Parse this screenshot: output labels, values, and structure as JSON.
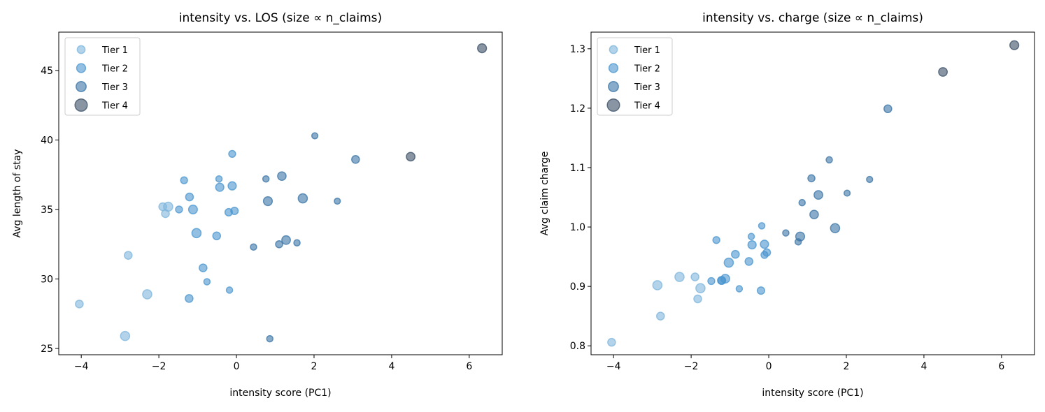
{
  "chart_data": [
    {
      "type": "scatter",
      "title": "intensity vs. LOS (size ∝ n_claims)",
      "xlabel": "intensity score (PC1)",
      "ylabel": "Avg length of stay",
      "xlim": [
        -4.58,
        6.85
      ],
      "ylim": [
        24.55,
        47.76
      ],
      "xticks": [
        -4,
        -2,
        0,
        2,
        4,
        6
      ],
      "xtick_labels": [
        "−4",
        "−2",
        "0",
        "2",
        "4",
        "6"
      ],
      "yticks": [
        25,
        30,
        35,
        40,
        45
      ],
      "ytick_labels": [
        "25",
        "30",
        "35",
        "40",
        "45"
      ],
      "yfield": "los",
      "legend_position": "upper-left"
    },
    {
      "type": "scatter",
      "title": "intensity vs. charge (size ∝ n_claims)",
      "xlabel": "intensity score (PC1)",
      "ylabel": "Avg claim charge",
      "xlim": [
        -4.58,
        6.85
      ],
      "ylim": [
        0.785,
        1.328
      ],
      "xticks": [
        -4,
        -2,
        0,
        2,
        4,
        6
      ],
      "xtick_labels": [
        "−4",
        "−2",
        "0",
        "2",
        "4",
        "6"
      ],
      "yticks": [
        0.8,
        0.9,
        1.0,
        1.1,
        1.2,
        1.3
      ],
      "ytick_labels": [
        "0.8",
        "0.9",
        "1.0",
        "1.1",
        "1.2",
        "1.3"
      ],
      "yfield": "charge",
      "legend_position": "upper-left"
    }
  ],
  "legend": [
    "Tier 1",
    "Tier 2",
    "Tier 3",
    "Tier 4"
  ],
  "tier_colors": [
    "#7fb6dc",
    "#4a95cf",
    "#3a74a6",
    "#3a4e66"
  ],
  "points": [
    {
      "x": -4.05,
      "los": 28.2,
      "charge": 0.806,
      "tier": 1,
      "size": 2
    },
    {
      "x": -2.87,
      "los": 25.9,
      "charge": 0.902,
      "tier": 1,
      "size": 3
    },
    {
      "x": -2.79,
      "los": 31.7,
      "charge": 0.85,
      "tier": 1,
      "size": 2
    },
    {
      "x": -2.3,
      "los": 28.9,
      "charge": 0.916,
      "tier": 1,
      "size": 3
    },
    {
      "x": -1.9,
      "los": 35.2,
      "charge": 0.916,
      "tier": 1,
      "size": 2
    },
    {
      "x": -1.76,
      "los": 35.2,
      "charge": 0.897,
      "tier": 1,
      "size": 3
    },
    {
      "x": -1.83,
      "los": 34.7,
      "charge": 0.879,
      "tier": 1,
      "size": 2
    },
    {
      "x": -1.35,
      "los": 37.1,
      "charge": 0.978,
      "tier": 2,
      "size": 1.5
    },
    {
      "x": -1.48,
      "los": 35.0,
      "charge": 0.909,
      "tier": 2,
      "size": 1.5
    },
    {
      "x": -1.21,
      "los": 35.9,
      "charge": 0.91,
      "tier": 2,
      "size": 2
    },
    {
      "x": -1.12,
      "los": 35.0,
      "charge": 0.913,
      "tier": 2,
      "size": 2.7
    },
    {
      "x": -1.03,
      "los": 33.3,
      "charge": 0.94,
      "tier": 2,
      "size": 3
    },
    {
      "x": -1.22,
      "los": 28.6,
      "charge": 0.91,
      "tier": 2,
      "size": 2
    },
    {
      "x": -0.86,
      "los": 30.8,
      "charge": 0.954,
      "tier": 2,
      "size": 2
    },
    {
      "x": -0.76,
      "los": 29.8,
      "charge": 0.896,
      "tier": 2,
      "size": 1.2
    },
    {
      "x": -0.51,
      "los": 33.1,
      "charge": 0.942,
      "tier": 2,
      "size": 2
    },
    {
      "x": -0.45,
      "los": 37.2,
      "charge": 0.984,
      "tier": 2,
      "size": 1.2
    },
    {
      "x": -0.43,
      "los": 36.6,
      "charge": 0.97,
      "tier": 2,
      "size": 2.3
    },
    {
      "x": -0.2,
      "los": 34.8,
      "charge": 0.893,
      "tier": 2,
      "size": 1.8
    },
    {
      "x": -0.18,
      "los": 29.2,
      "charge": 1.002,
      "tier": 2,
      "size": 1.2
    },
    {
      "x": -0.11,
      "los": 39.0,
      "charge": 0.953,
      "tier": 2,
      "size": 1.5
    },
    {
      "x": -0.11,
      "los": 36.7,
      "charge": 0.971,
      "tier": 2,
      "size": 2.3
    },
    {
      "x": -0.05,
      "los": 34.9,
      "charge": 0.957,
      "tier": 2,
      "size": 1.8
    },
    {
      "x": 0.44,
      "los": 32.3,
      "charge": 0.99,
      "tier": 3,
      "size": 1.2
    },
    {
      "x": 0.76,
      "los": 37.2,
      "charge": 0.975,
      "tier": 3,
      "size": 1.2
    },
    {
      "x": 0.81,
      "los": 35.6,
      "charge": 0.984,
      "tier": 3,
      "size": 2.8
    },
    {
      "x": 0.86,
      "los": 25.7,
      "charge": 1.041,
      "tier": 3,
      "size": 1.2
    },
    {
      "x": 1.1,
      "los": 32.5,
      "charge": 1.082,
      "tier": 3,
      "size": 1.6
    },
    {
      "x": 1.17,
      "los": 37.4,
      "charge": 1.021,
      "tier": 3,
      "size": 2.5
    },
    {
      "x": 1.28,
      "los": 32.8,
      "charge": 1.054,
      "tier": 3,
      "size": 2.6
    },
    {
      "x": 1.56,
      "los": 32.6,
      "charge": 1.113,
      "tier": 3,
      "size": 1.2
    },
    {
      "x": 1.71,
      "los": 35.8,
      "charge": 0.998,
      "tier": 3,
      "size": 3
    },
    {
      "x": 2.02,
      "los": 40.3,
      "charge": 1.057,
      "tier": 3,
      "size": 1.1
    },
    {
      "x": 2.6,
      "los": 35.6,
      "charge": 1.08,
      "tier": 3,
      "size": 1.1
    },
    {
      "x": 3.07,
      "los": 38.6,
      "charge": 1.199,
      "tier": 3,
      "size": 2
    },
    {
      "x": 4.49,
      "los": 38.8,
      "charge": 1.261,
      "tier": 4,
      "size": 2.6
    },
    {
      "x": 6.33,
      "los": 46.6,
      "charge": 1.306,
      "tier": 4,
      "size": 2.8
    }
  ]
}
